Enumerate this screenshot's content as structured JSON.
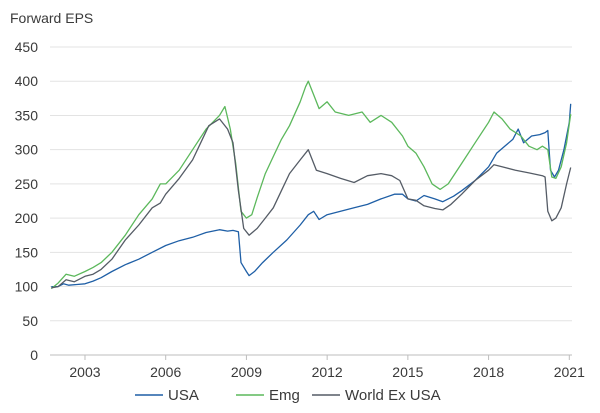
{
  "chart_data": {
    "type": "line",
    "title": "Forward EPS",
    "xlabel": "",
    "ylabel": "",
    "xlim": [
      2001.7,
      2021.1
    ],
    "ylim": [
      0,
      450
    ],
    "grid": true,
    "legend_position": "bottom",
    "x_ticks": [
      2003,
      2006,
      2009,
      2012,
      2015,
      2018,
      2021
    ],
    "x_tick_labels": [
      "2003",
      "2006",
      "2009",
      "2012",
      "2015",
      "2018",
      "2021"
    ],
    "y_ticks": [
      0,
      50,
      100,
      150,
      200,
      250,
      300,
      350,
      400,
      450
    ],
    "y_tick_labels": [
      "0",
      "50",
      "100",
      "150",
      "200",
      "250",
      "300",
      "350",
      "400",
      "450"
    ],
    "series": [
      {
        "name": "USA",
        "color": "#1f5fa6",
        "points": [
          [
            2001.75,
            100
          ],
          [
            2002.0,
            100
          ],
          [
            2002.2,
            104
          ],
          [
            2002.4,
            102
          ],
          [
            2002.7,
            103
          ],
          [
            2003.0,
            104
          ],
          [
            2003.3,
            108
          ],
          [
            2003.6,
            113
          ],
          [
            2004.0,
            122
          ],
          [
            2004.5,
            132
          ],
          [
            2005.0,
            140
          ],
          [
            2005.5,
            150
          ],
          [
            2006.0,
            160
          ],
          [
            2006.5,
            167
          ],
          [
            2007.0,
            172
          ],
          [
            2007.5,
            179
          ],
          [
            2008.0,
            183
          ],
          [
            2008.3,
            181
          ],
          [
            2008.5,
            182
          ],
          [
            2008.7,
            180
          ],
          [
            2008.8,
            135
          ],
          [
            2009.0,
            122
          ],
          [
            2009.1,
            116
          ],
          [
            2009.3,
            122
          ],
          [
            2009.6,
            135
          ],
          [
            2010.0,
            150
          ],
          [
            2010.5,
            168
          ],
          [
            2011.0,
            190
          ],
          [
            2011.3,
            205
          ],
          [
            2011.5,
            210
          ],
          [
            2011.7,
            198
          ],
          [
            2012.0,
            205
          ],
          [
            2012.5,
            210
          ],
          [
            2013.0,
            215
          ],
          [
            2013.5,
            220
          ],
          [
            2014.0,
            228
          ],
          [
            2014.5,
            235
          ],
          [
            2014.8,
            235
          ],
          [
            2015.0,
            228
          ],
          [
            2015.3,
            225
          ],
          [
            2015.6,
            233
          ],
          [
            2016.0,
            228
          ],
          [
            2016.3,
            224
          ],
          [
            2016.7,
            232
          ],
          [
            2017.0,
            240
          ],
          [
            2017.5,
            255
          ],
          [
            2018.0,
            275
          ],
          [
            2018.3,
            295
          ],
          [
            2018.6,
            305
          ],
          [
            2018.9,
            315
          ],
          [
            2019.1,
            330
          ],
          [
            2019.3,
            310
          ],
          [
            2019.6,
            320
          ],
          [
            2019.9,
            322
          ],
          [
            2020.1,
            325
          ],
          [
            2020.2,
            328
          ],
          [
            2020.3,
            270
          ],
          [
            2020.45,
            260
          ],
          [
            2020.6,
            270
          ],
          [
            2020.8,
            300
          ],
          [
            2021.0,
            340
          ],
          [
            2021.05,
            367
          ]
        ]
      },
      {
        "name": "Emg",
        "color": "#5cb85c",
        "points": [
          [
            2001.75,
            97
          ],
          [
            2002.0,
            105
          ],
          [
            2002.3,
            118
          ],
          [
            2002.6,
            115
          ],
          [
            2003.0,
            122
          ],
          [
            2003.3,
            128
          ],
          [
            2003.6,
            135
          ],
          [
            2004.0,
            150
          ],
          [
            2004.5,
            175
          ],
          [
            2005.0,
            205
          ],
          [
            2005.5,
            228
          ],
          [
            2005.8,
            250
          ],
          [
            2006.0,
            250
          ],
          [
            2006.5,
            270
          ],
          [
            2007.0,
            300
          ],
          [
            2007.5,
            330
          ],
          [
            2008.0,
            350
          ],
          [
            2008.2,
            363
          ],
          [
            2008.4,
            330
          ],
          [
            2008.6,
            280
          ],
          [
            2008.8,
            210
          ],
          [
            2009.0,
            200
          ],
          [
            2009.2,
            205
          ],
          [
            2009.4,
            230
          ],
          [
            2009.7,
            265
          ],
          [
            2010.0,
            290
          ],
          [
            2010.3,
            315
          ],
          [
            2010.6,
            335
          ],
          [
            2011.0,
            370
          ],
          [
            2011.2,
            392
          ],
          [
            2011.3,
            400
          ],
          [
            2011.5,
            380
          ],
          [
            2011.7,
            360
          ],
          [
            2012.0,
            370
          ],
          [
            2012.3,
            355
          ],
          [
            2012.8,
            350
          ],
          [
            2013.3,
            355
          ],
          [
            2013.6,
            340
          ],
          [
            2014.0,
            350
          ],
          [
            2014.4,
            340
          ],
          [
            2014.8,
            320
          ],
          [
            2015.0,
            305
          ],
          [
            2015.3,
            295
          ],
          [
            2015.6,
            275
          ],
          [
            2015.9,
            250
          ],
          [
            2016.2,
            242
          ],
          [
            2016.5,
            250
          ],
          [
            2017.0,
            280
          ],
          [
            2017.5,
            310
          ],
          [
            2018.0,
            340
          ],
          [
            2018.2,
            355
          ],
          [
            2018.5,
            345
          ],
          [
            2018.8,
            330
          ],
          [
            2019.2,
            320
          ],
          [
            2019.5,
            305
          ],
          [
            2019.8,
            300
          ],
          [
            2020.0,
            305
          ],
          [
            2020.2,
            300
          ],
          [
            2020.35,
            260
          ],
          [
            2020.5,
            258
          ],
          [
            2020.7,
            275
          ],
          [
            2020.9,
            310
          ],
          [
            2021.05,
            352
          ]
        ]
      },
      {
        "name": "World Ex USA",
        "color": "#555c66",
        "points": [
          [
            2001.75,
            98
          ],
          [
            2002.0,
            100
          ],
          [
            2002.3,
            110
          ],
          [
            2002.6,
            107
          ],
          [
            2003.0,
            115
          ],
          [
            2003.3,
            118
          ],
          [
            2003.6,
            125
          ],
          [
            2004.0,
            140
          ],
          [
            2004.5,
            168
          ],
          [
            2005.0,
            190
          ],
          [
            2005.5,
            215
          ],
          [
            2005.8,
            222
          ],
          [
            2006.0,
            235
          ],
          [
            2006.5,
            258
          ],
          [
            2007.0,
            285
          ],
          [
            2007.3,
            310
          ],
          [
            2007.6,
            335
          ],
          [
            2008.0,
            345
          ],
          [
            2008.3,
            330
          ],
          [
            2008.5,
            310
          ],
          [
            2008.7,
            240
          ],
          [
            2008.9,
            185
          ],
          [
            2009.1,
            175
          ],
          [
            2009.4,
            185
          ],
          [
            2009.7,
            200
          ],
          [
            2010.0,
            215
          ],
          [
            2010.3,
            240
          ],
          [
            2010.6,
            265
          ],
          [
            2011.0,
            285
          ],
          [
            2011.3,
            300
          ],
          [
            2011.6,
            270
          ],
          [
            2012.0,
            265
          ],
          [
            2012.5,
            258
          ],
          [
            2013.0,
            252
          ],
          [
            2013.5,
            262
          ],
          [
            2014.0,
            265
          ],
          [
            2014.4,
            262
          ],
          [
            2014.7,
            255
          ],
          [
            2015.0,
            228
          ],
          [
            2015.3,
            226
          ],
          [
            2015.6,
            218
          ],
          [
            2016.0,
            214
          ],
          [
            2016.3,
            212
          ],
          [
            2016.6,
            220
          ],
          [
            2017.0,
            235
          ],
          [
            2017.5,
            255
          ],
          [
            2018.0,
            270
          ],
          [
            2018.2,
            278
          ],
          [
            2018.5,
            275
          ],
          [
            2019.0,
            270
          ],
          [
            2019.5,
            266
          ],
          [
            2020.0,
            262
          ],
          [
            2020.1,
            260
          ],
          [
            2020.2,
            210
          ],
          [
            2020.35,
            196
          ],
          [
            2020.5,
            200
          ],
          [
            2020.7,
            215
          ],
          [
            2020.9,
            250
          ],
          [
            2021.05,
            274
          ]
        ]
      }
    ]
  }
}
